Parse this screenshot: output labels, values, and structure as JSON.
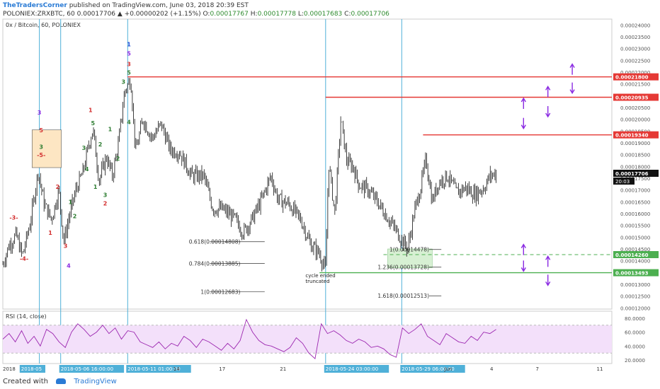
{
  "header": {
    "author": "TheTradersCorner",
    "published": "published on TradingView.com, June 03, 2018 20:39 EST",
    "symbol": "POLONIEX:ZRXBTC, 60",
    "change": "0.00017706 ▲ +0.00000202 (+1.15%)",
    "o_label": "O:",
    "o_value": "0.00017767",
    "h_label": "H:",
    "h_value": "0.00017778",
    "l_label": "L:",
    "l_value": "0.00017683",
    "c_label": "C:",
    "c_value": "0.00017706"
  },
  "footer": {
    "created_with": "Created with",
    "brand": "TradingView"
  },
  "colors": {
    "candle": "#111111",
    "red_line": "#e53935",
    "green_line": "#4caf50",
    "purple": "#8a2be2",
    "wave_red": "#d32f2f",
    "wave_green": "#2e7d32",
    "wave_blue": "#1e4fd8",
    "rsi_fill": "#f3e0fa",
    "rsi_line": "#9c27b0",
    "vline": "#4fb0d8",
    "box": "#fde6c3",
    "gbox": "#d7f0d3"
  },
  "chart_data": [
    {
      "type": "candlestick",
      "title": "0x / Bitcoin, 60, POLONIEX",
      "ylim": [
        0.0001195,
        0.0002425
      ],
      "y_ticks": [
        "0.00024000",
        "0.00023500",
        "0.00023000",
        "0.00022500",
        "0.00022000",
        "0.00021500",
        "0.00021000",
        "0.00020500",
        "0.00020000",
        "0.00019500",
        "0.00019000",
        "0.00018500",
        "0.00018000",
        "0.00017500",
        "0.00017000",
        "0.00016500",
        "0.00016000",
        "0.00015500",
        "0.00015000",
        "0.00014500",
        "0.00014000",
        "0.00013500",
        "0.00013000",
        "0.00012500",
        "0.00012000"
      ],
      "x_ticks": [
        {
          "label": "2018",
          "x": 0.0
        },
        {
          "label": "2018-05",
          "x": 0.03
        },
        {
          "label": "2018-05-06 16:00:00",
          "x": 0.095
        },
        {
          "label": "2018-05-11 01:00:00",
          "x": 0.205
        },
        {
          "label": "14",
          "x": 0.28
        },
        {
          "label": "17",
          "x": 0.355
        },
        {
          "label": "21",
          "x": 0.455
        },
        {
          "label": "2018-05-24 03:00:00",
          "x": 0.53
        },
        {
          "label": "2018-05-29 06:00:00",
          "x": 0.655
        },
        {
          "label": "Jun",
          "x": 0.725
        },
        {
          "label": "4",
          "x": 0.8
        },
        {
          "label": "7",
          "x": 0.875
        },
        {
          "label": "11",
          "x": 0.975
        }
      ],
      "price_path": [
        [
          0.0,
          0.0001385
        ],
        [
          0.01,
          0.0001465
        ],
        [
          0.022,
          0.000151
        ],
        [
          0.032,
          0.000142
        ],
        [
          0.045,
          0.000156
        ],
        [
          0.058,
          0.000178
        ],
        [
          0.068,
          0.000164
        ],
        [
          0.08,
          0.0001575
        ],
        [
          0.092,
          0.00017
        ],
        [
          0.1,
          0.000148
        ],
        [
          0.11,
          0.00016
        ],
        [
          0.12,
          0.00017
        ],
        [
          0.132,
          0.000178
        ],
        [
          0.14,
          0.000188
        ],
        [
          0.148,
          0.000196
        ],
        [
          0.158,
          0.000174
        ],
        [
          0.17,
          0.000184
        ],
        [
          0.18,
          0.000176
        ],
        [
          0.19,
          0.00019
        ],
        [
          0.2,
          0.000212
        ],
        [
          0.21,
          0.000217
        ],
        [
          0.218,
          0.000186
        ],
        [
          0.23,
          0.0002
        ],
        [
          0.245,
          0.000192
        ],
        [
          0.26,
          0.000198
        ],
        [
          0.275,
          0.000187
        ],
        [
          0.29,
          0.000186
        ],
        [
          0.31,
          0.000176
        ],
        [
          0.33,
          0.000176
        ],
        [
          0.345,
          0.000162
        ],
        [
          0.36,
          0.000162
        ],
        [
          0.38,
          0.000158
        ],
        [
          0.395,
          0.000152
        ],
        [
          0.41,
          0.000158
        ],
        [
          0.425,
          0.000166
        ],
        [
          0.44,
          0.000176
        ],
        [
          0.452,
          0.000166
        ],
        [
          0.47,
          0.000164
        ],
        [
          0.49,
          0.000157
        ],
        [
          0.505,
          0.000147
        ],
        [
          0.52,
          0.000143
        ],
        [
          0.53,
          0.000136
        ],
        [
          0.535,
          0.000182
        ],
        [
          0.545,
          0.00016
        ],
        [
          0.555,
          0.0002
        ],
        [
          0.565,
          0.000182
        ],
        [
          0.575,
          0.00018
        ],
        [
          0.585,
          0.000172
        ],
        [
          0.6,
          0.00017
        ],
        [
          0.615,
          0.000165
        ],
        [
          0.63,
          0.000159
        ],
        [
          0.65,
          0.000151
        ],
        [
          0.665,
          0.000145
        ],
        [
          0.675,
          0.00016
        ],
        [
          0.685,
          0.00017
        ],
        [
          0.695,
          0.000183
        ],
        [
          0.705,
          0.000165
        ],
        [
          0.715,
          0.000173
        ],
        [
          0.73,
          0.000176
        ],
        [
          0.745,
          0.000169
        ],
        [
          0.76,
          0.000171
        ],
        [
          0.775,
          0.000168
        ],
        [
          0.79,
          0.000171
        ],
        [
          0.8,
          0.000176
        ],
        [
          0.81,
          0.0001771
        ]
      ],
      "last_price": "0.00017706",
      "last_time": "20:03",
      "h_levels": [
        {
          "value": 0.000218,
          "label": "0.00021800",
          "color": "red",
          "x_from": 0.205
        },
        {
          "value": 0.00020935,
          "label": "0.00020935",
          "color": "red",
          "x_from": 0.53
        },
        {
          "value": 0.0001934,
          "label": "0.00019340",
          "color": "red",
          "x_from": 0.69
        },
        {
          "value": 0.0001426,
          "label": "0.00014260",
          "color": "green",
          "x_from": 0.625,
          "dashed": true
        },
        {
          "value": 0.00013493,
          "label": "0.00013493",
          "color": "green",
          "x_from": 0.52
        }
      ],
      "fib_left": [
        {
          "label": "0.618(0.00014808)",
          "value": 0.00014808
        },
        {
          "label": "0.784(0.00013885)",
          "value": 0.00013885
        },
        {
          "label": "1(0.00012683)",
          "value": 0.00012683
        }
      ],
      "fib_right": [
        {
          "label": "1(0.00014478)",
          "value": 0.00014478
        },
        {
          "label": "1.236(0.00013728)",
          "value": 0.00013728
        },
        {
          "label": "1.618(0.00012513)",
          "value": 0.00012513
        }
      ],
      "annotation": [
        "cycle ended",
        "truncated"
      ],
      "wave_labels": [
        {
          "t": "-3-",
          "x": 0.018,
          "v": 0.0001575,
          "c": "wave_red"
        },
        {
          "t": "-4-",
          "x": 0.035,
          "v": 0.00014,
          "c": "wave_red"
        },
        {
          "t": "3",
          "x": 0.06,
          "v": 0.000202,
          "c": "purple"
        },
        {
          "t": "5",
          "x": 0.063,
          "v": 0.0001945,
          "c": "wave_red"
        },
        {
          "t": "3",
          "x": 0.063,
          "v": 0.0001875,
          "c": "wave_green"
        },
        {
          "t": "-5-",
          "x": 0.063,
          "v": 0.000184,
          "c": "wave_red"
        },
        {
          "t": "2",
          "x": 0.09,
          "v": 0.0001705,
          "c": "wave_red"
        },
        {
          "t": "1",
          "x": 0.078,
          "v": 0.000151,
          "c": "wave_red"
        },
        {
          "t": "3",
          "x": 0.103,
          "v": 0.0001455,
          "c": "wave_red"
        },
        {
          "t": "4",
          "x": 0.108,
          "v": 0.000137,
          "c": "purple"
        },
        {
          "t": "2",
          "x": 0.118,
          "v": 0.000158,
          "c": "wave_green"
        },
        {
          "t": "1",
          "x": 0.111,
          "v": 0.000164,
          "c": "wave_green"
        },
        {
          "t": "3",
          "x": 0.133,
          "v": 0.000187,
          "c": "wave_green"
        },
        {
          "t": "4",
          "x": 0.138,
          "v": 0.000178,
          "c": "wave_green"
        },
        {
          "t": "1",
          "x": 0.152,
          "v": 0.0001705,
          "c": "wave_green"
        },
        {
          "t": "1",
          "x": 0.144,
          "v": 0.000203,
          "c": "wave_red"
        },
        {
          "t": "5",
          "x": 0.148,
          "v": 0.0001975,
          "c": "wave_green"
        },
        {
          "t": "2",
          "x": 0.16,
          "v": 0.0001885,
          "c": "wave_green"
        },
        {
          "t": "3",
          "x": 0.168,
          "v": 0.000167,
          "c": "wave_green"
        },
        {
          "t": "2",
          "x": 0.168,
          "v": 0.0001635,
          "c": "wave_red"
        },
        {
          "t": "1",
          "x": 0.176,
          "v": 0.000195,
          "c": "wave_green"
        },
        {
          "t": "2",
          "x": 0.189,
          "v": 0.0001825,
          "c": "wave_green"
        },
        {
          "t": "3",
          "x": 0.198,
          "v": 0.000215,
          "c": "wave_green"
        },
        {
          "t": "4",
          "x": 0.207,
          "v": 0.000198,
          "c": "wave_green"
        },
        {
          "t": "1",
          "x": 0.207,
          "v": 0.000231,
          "c": "wave_blue"
        },
        {
          "t": "5",
          "x": 0.207,
          "v": 0.000227,
          "c": "purple"
        },
        {
          "t": "3",
          "x": 0.207,
          "v": 0.0002225,
          "c": "wave_red"
        },
        {
          "t": "5",
          "x": 0.207,
          "v": 0.000219,
          "c": "wave_green"
        }
      ],
      "arrows": [
        {
          "x": 0.855,
          "v": 0.0002065,
          "dir": "up"
        },
        {
          "x": 0.855,
          "v": 0.0001985,
          "dir": "down"
        },
        {
          "x": 0.895,
          "v": 0.0002115,
          "dir": "up"
        },
        {
          "x": 0.895,
          "v": 0.0002035,
          "dir": "down"
        },
        {
          "x": 0.935,
          "v": 0.000221,
          "dir": "up"
        },
        {
          "x": 0.935,
          "v": 0.0002135,
          "dir": "down"
        },
        {
          "x": 0.855,
          "v": 0.0001445,
          "dir": "up"
        },
        {
          "x": 0.855,
          "v": 0.000138,
          "dir": "down"
        },
        {
          "x": 0.895,
          "v": 0.0001395,
          "dir": "up"
        },
        {
          "x": 0.895,
          "v": 0.000132,
          "dir": "down"
        }
      ]
    },
    {
      "type": "line",
      "title": "RSI (14, close)",
      "ylim": [
        15,
        90
      ],
      "y_ticks": [
        "80.0000",
        "60.0000",
        "40.0000",
        "20.0000"
      ],
      "band": [
        30,
        70
      ],
      "values": [
        50,
        58,
        46,
        62,
        44,
        54,
        40,
        64,
        58,
        46,
        38,
        60,
        72,
        64,
        54,
        60,
        70,
        58,
        66,
        50,
        62,
        60,
        46,
        42,
        38,
        46,
        36,
        44,
        40,
        54,
        48,
        38,
        50,
        46,
        40,
        34,
        44,
        36,
        48,
        78,
        60,
        48,
        42,
        40,
        36,
        32,
        38,
        52,
        44,
        30,
        22,
        72,
        58,
        62,
        56,
        48,
        44,
        50,
        46,
        38,
        40,
        36,
        28,
        24,
        66,
        58,
        64,
        72,
        54,
        48,
        42,
        58,
        52,
        46,
        44,
        54,
        48,
        60,
        58,
        64
      ]
    }
  ]
}
